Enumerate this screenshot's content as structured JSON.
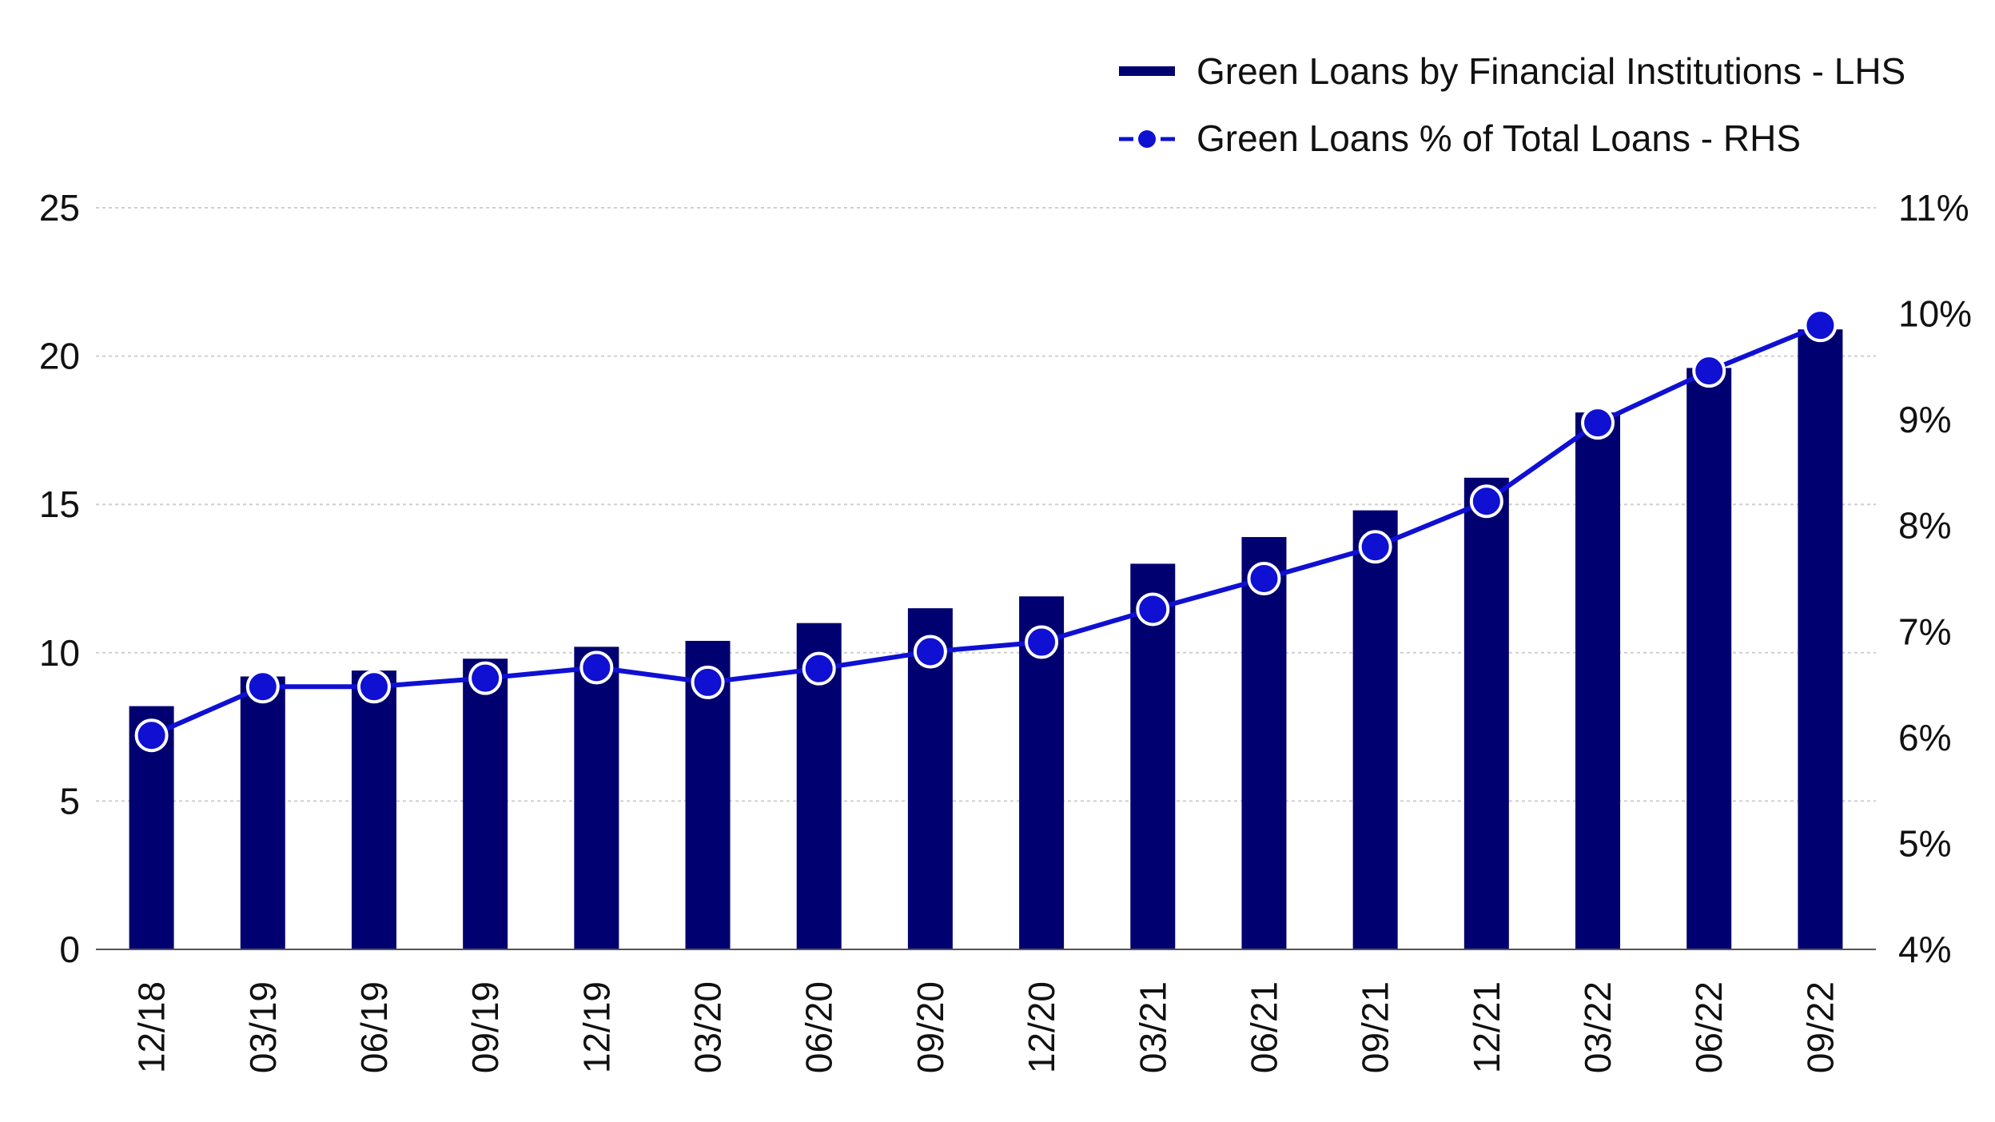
{
  "chart_data": {
    "type": "bar",
    "categories": [
      "12/18",
      "03/19",
      "06/19",
      "09/19",
      "12/19",
      "03/20",
      "06/20",
      "09/20",
      "12/20",
      "03/21",
      "06/21",
      "09/21",
      "12/21",
      "03/22",
      "06/22",
      "09/22"
    ],
    "series": [
      {
        "name": "Green Loans by Financial Institutions - LHS",
        "type": "bar",
        "axis": "left",
        "color": "#010070",
        "values": [
          8.2,
          9.2,
          9.4,
          9.8,
          10.2,
          10.4,
          11.0,
          11.5,
          11.9,
          13.0,
          13.9,
          14.8,
          15.9,
          18.1,
          19.6,
          20.9
        ]
      },
      {
        "name": "Green Loans % of Total Loans - RHS",
        "type": "line",
        "axis": "right",
        "color": "#0f10d2",
        "values": [
          6.02,
          6.48,
          6.48,
          6.56,
          6.66,
          6.52,
          6.65,
          6.81,
          6.9,
          7.21,
          7.5,
          7.8,
          8.23,
          8.97,
          9.46,
          9.89
        ]
      }
    ],
    "y_left": {
      "lim": [
        0,
        25
      ],
      "ticks": [
        0,
        5,
        10,
        15,
        20,
        25
      ],
      "tick_labels": [
        "0",
        "5",
        "10",
        "15",
        "20",
        "25"
      ]
    },
    "y_right": {
      "lim": [
        4,
        11
      ],
      "ticks": [
        4,
        5,
        6,
        7,
        8,
        9,
        10,
        11
      ],
      "tick_labels": [
        "4%",
        "5%",
        "6%",
        "7%",
        "8%",
        "9%",
        "10%",
        "11%"
      ]
    },
    "grid": true,
    "legend_position": "top-right",
    "title": "",
    "xlabel": "",
    "ylabel": ""
  }
}
